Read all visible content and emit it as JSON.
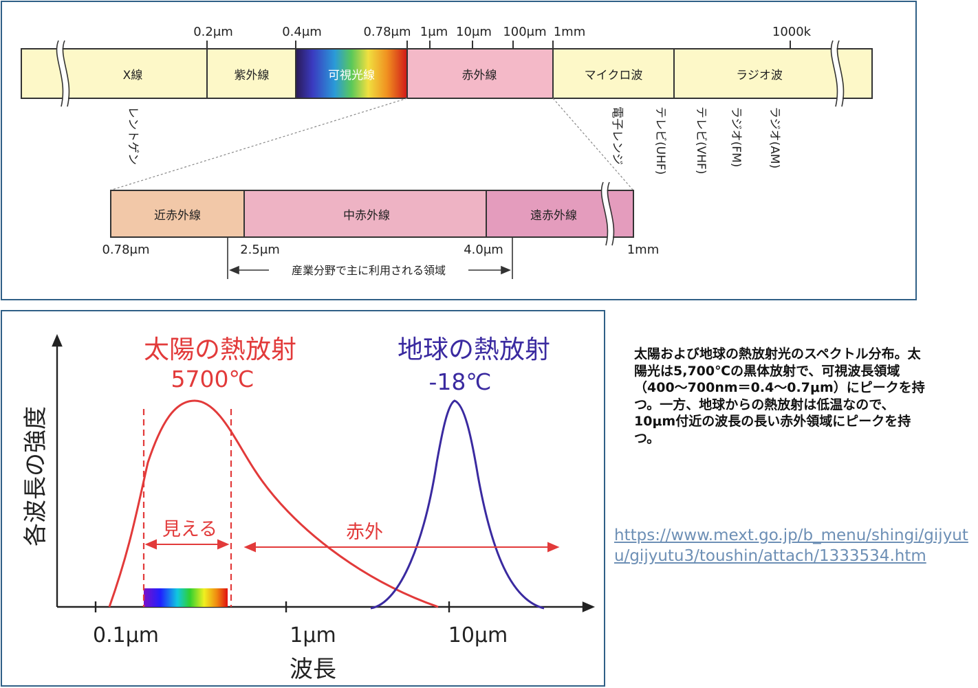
{
  "spectrum": {
    "ticks": [
      "0.2μm",
      "0.4μm",
      "0.78μm",
      "1μm",
      "10μm",
      "100μm",
      "1mm",
      "1000k"
    ],
    "bands": [
      "X線",
      "紫外線",
      "可視光線",
      "赤外線",
      "マイクロ波",
      "ラジオ波"
    ],
    "uses": [
      "レントゲン",
      "電子レンジ",
      "テレビ(UHF)",
      "テレビ(VHF)",
      "ラジオ(FM)",
      "ラジオ(AM)"
    ]
  },
  "infrared": {
    "bands": [
      "近赤外線",
      "中赤外線",
      "遠赤外線"
    ],
    "ticks": [
      "0.78μm",
      "2.5μm",
      "4.0μm",
      "1mm"
    ],
    "industrial_range": "産業分野で主に利用される領域"
  },
  "thermal": {
    "sun_title": "太陽の熱放射",
    "sun_temp": "5700℃",
    "earth_title": "地球の熱放射",
    "earth_temp": "-18℃",
    "visible_label": "見える",
    "infrared_label": "赤外",
    "ylabel": "各波長の強度",
    "xlabel": "波長",
    "xticks": [
      "0.1μm",
      "1μm",
      "10μm"
    ]
  },
  "caption": "太陽および地球の熱放射光のスペクトル分布。太陽光は5,700℃の黒体放射で、可視波長領域（400〜700nm＝0.4〜0.7μm）にピークを持つ。一方、地球からの熱放射は低温なので、10μm付近の波長の長い赤外領域にピークを持つ。",
  "source_url": "https://www.mext.go.jp/b_menu/shingi/gijyutu/gijyutu3/toushin/attach/1333534.htm",
  "colors": {
    "border": "#2f5f86",
    "band_cream": "#fdf8c8",
    "infrared_pink": "#f4b9c8",
    "near_ir": "#f2c8a8",
    "mid_ir": "#eeb3c4",
    "far_ir": "#e49cbd",
    "sun_red": "#e23a3a",
    "earth_blue": "#3a2aa0",
    "link": "#6d8fb5"
  }
}
